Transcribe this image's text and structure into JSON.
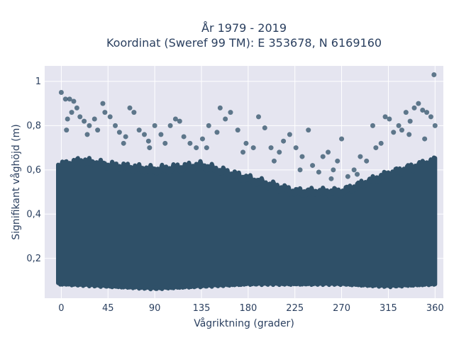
{
  "chart_data": {
    "type": "scatter",
    "title_line1": "År 1979 - 2019",
    "title_line2": "Koordinat (Sweref 99 TM): E 353678, N 6169160",
    "xlabel": "Vågriktning (grader)",
    "ylabel": "Signifikant våghöjd (m)",
    "xlim": [
      -16,
      368
    ],
    "ylim": [
      0.02,
      1.07
    ],
    "x_ticks": [
      0,
      45,
      90,
      135,
      180,
      225,
      270,
      315,
      360
    ],
    "x_tick_labels": [
      "0",
      "45",
      "90",
      "135",
      "180",
      "225",
      "270",
      "315",
      "360"
    ],
    "y_ticks": [
      0.2,
      0.4,
      0.6,
      0.8,
      1
    ],
    "y_tick_labels": [
      "0,2",
      "0,4",
      "0,6",
      "0,8",
      "1"
    ],
    "grid": true,
    "legend": "none",
    "marker_color": "#2f5068",
    "background_color": "#e5e5f0",
    "dense_band": {
      "x_range": [
        -3,
        360
      ],
      "y_min_profile": [
        [
          0,
          0.09
        ],
        [
          45,
          0.08
        ],
        [
          90,
          0.07
        ],
        [
          135,
          0.08
        ],
        [
          180,
          0.09
        ],
        [
          225,
          0.09
        ],
        [
          270,
          0.09
        ],
        [
          315,
          0.08
        ],
        [
          360,
          0.09
        ]
      ],
      "y_max_profile": [
        [
          0,
          0.62
        ],
        [
          20,
          0.64
        ],
        [
          45,
          0.62
        ],
        [
          90,
          0.6
        ],
        [
          135,
          0.62
        ],
        [
          180,
          0.56
        ],
        [
          225,
          0.5
        ],
        [
          270,
          0.5
        ],
        [
          315,
          0.58
        ],
        [
          360,
          0.64
        ]
      ]
    },
    "outliers": [
      [
        0,
        0.95
      ],
      [
        4,
        0.92
      ],
      [
        8,
        0.92
      ],
      [
        12,
        0.91
      ],
      [
        15,
        0.88
      ],
      [
        10,
        0.86
      ],
      [
        6,
        0.83
      ],
      [
        18,
        0.84
      ],
      [
        22,
        0.82
      ],
      [
        27,
        0.8
      ],
      [
        32,
        0.83
      ],
      [
        35,
        0.78
      ],
      [
        40,
        0.9
      ],
      [
        42,
        0.86
      ],
      [
        47,
        0.84
      ],
      [
        52,
        0.8
      ],
      [
        56,
        0.77
      ],
      [
        62,
        0.75
      ],
      [
        66,
        0.88
      ],
      [
        70,
        0.86
      ],
      [
        75,
        0.78
      ],
      [
        80,
        0.76
      ],
      [
        84,
        0.73
      ],
      [
        90,
        0.8
      ],
      [
        96,
        0.76
      ],
      [
        100,
        0.72
      ],
      [
        105,
        0.8
      ],
      [
        110,
        0.83
      ],
      [
        114,
        0.82
      ],
      [
        118,
        0.75
      ],
      [
        124,
        0.72
      ],
      [
        130,
        0.7
      ],
      [
        136,
        0.74
      ],
      [
        142,
        0.8
      ],
      [
        150,
        0.77
      ],
      [
        153,
        0.88
      ],
      [
        158,
        0.83
      ],
      [
        163,
        0.86
      ],
      [
        170,
        0.78
      ],
      [
        178,
        0.72
      ],
      [
        185,
        0.7
      ],
      [
        190,
        0.84
      ],
      [
        196,
        0.79
      ],
      [
        202,
        0.7
      ],
      [
        210,
        0.68
      ],
      [
        214,
        0.73
      ],
      [
        220,
        0.76
      ],
      [
        226,
        0.7
      ],
      [
        232,
        0.66
      ],
      [
        238,
        0.78
      ],
      [
        242,
        0.62
      ],
      [
        248,
        0.59
      ],
      [
        252,
        0.66
      ],
      [
        257,
        0.68
      ],
      [
        262,
        0.6
      ],
      [
        266,
        0.64
      ],
      [
        270,
        0.74
      ],
      [
        276,
        0.57
      ],
      [
        282,
        0.6
      ],
      [
        288,
        0.66
      ],
      [
        294,
        0.64
      ],
      [
        300,
        0.8
      ],
      [
        303,
        0.7
      ],
      [
        308,
        0.72
      ],
      [
        312,
        0.84
      ],
      [
        316,
        0.83
      ],
      [
        320,
        0.77
      ],
      [
        325,
        0.8
      ],
      [
        328,
        0.78
      ],
      [
        332,
        0.86
      ],
      [
        336,
        0.82
      ],
      [
        340,
        0.88
      ],
      [
        344,
        0.9
      ],
      [
        348,
        0.87
      ],
      [
        352,
        0.86
      ],
      [
        356,
        0.84
      ],
      [
        359,
        1.03
      ],
      [
        360,
        0.8
      ],
      [
        5,
        0.78
      ],
      [
        25,
        0.76
      ],
      [
        60,
        0.72
      ],
      [
        85,
        0.7
      ],
      [
        140,
        0.7
      ],
      [
        175,
        0.68
      ],
      [
        205,
        0.64
      ],
      [
        230,
        0.6
      ],
      [
        260,
        0.56
      ],
      [
        285,
        0.58
      ],
      [
        335,
        0.76
      ],
      [
        350,
        0.74
      ]
    ]
  }
}
